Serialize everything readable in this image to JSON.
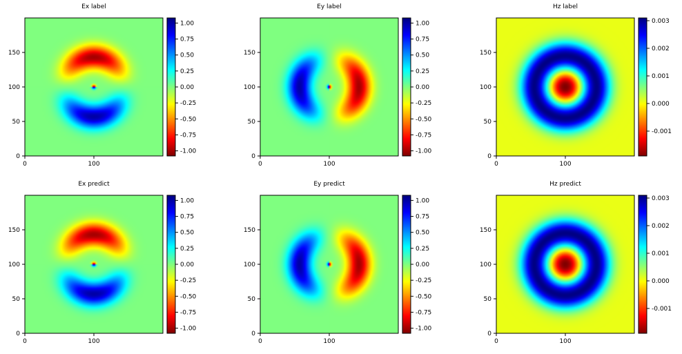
{
  "figure": {
    "type": "heatmap-grid",
    "rows": 2,
    "cols": 3
  },
  "chart_data": [
    {
      "type": "heatmap",
      "title": "Ex label",
      "field": "Ex",
      "colormap": "jet_r",
      "xlim": [
        0,
        200
      ],
      "ylim": [
        0,
        200
      ],
      "x_ticks": [
        0,
        100
      ],
      "y_ticks": [
        0,
        50,
        100,
        150
      ],
      "clim": [
        -1.08,
        1.08
      ],
      "colorbar_ticks": [
        "1.00",
        "0.75",
        "0.50",
        "0.25",
        "0.00",
        "-0.25",
        "-0.50",
        "-0.75",
        "-1.00"
      ],
      "colorbar_values": [
        1.0,
        0.75,
        0.5,
        0.25,
        0.0,
        -0.25,
        -0.5,
        -0.75,
        -1.0
      ]
    },
    {
      "type": "heatmap",
      "title": "Ey label",
      "field": "Ey",
      "colormap": "jet_r",
      "xlim": [
        0,
        200
      ],
      "ylim": [
        0,
        200
      ],
      "x_ticks": [
        0,
        100
      ],
      "y_ticks": [
        0,
        50,
        100,
        150
      ],
      "clim": [
        -1.08,
        1.08
      ],
      "colorbar_ticks": [
        "1.00",
        "0.75",
        "0.50",
        "0.25",
        "0.00",
        "-0.25",
        "-0.50",
        "-0.75",
        "-1.00"
      ],
      "colorbar_values": [
        1.0,
        0.75,
        0.5,
        0.25,
        0.0,
        -0.25,
        -0.5,
        -0.75,
        -1.0
      ]
    },
    {
      "type": "heatmap",
      "title": "Hz label",
      "field": "Hz",
      "colormap": "jet_r",
      "xlim": [
        0,
        200
      ],
      "ylim": [
        0,
        200
      ],
      "x_ticks": [
        0,
        100
      ],
      "y_ticks": [
        0,
        50,
        100,
        150
      ],
      "clim": [
        -0.0019,
        0.0031
      ],
      "colorbar_ticks": [
        "0.003",
        "0.002",
        "0.001",
        "0.000",
        "-0.001"
      ],
      "colorbar_values": [
        0.003,
        0.002,
        0.001,
        0.0,
        -0.001
      ]
    },
    {
      "type": "heatmap",
      "title": "Ex predict",
      "field": "Ex",
      "colormap": "jet_r",
      "xlim": [
        0,
        200
      ],
      "ylim": [
        0,
        200
      ],
      "x_ticks": [
        0,
        100
      ],
      "y_ticks": [
        0,
        50,
        100,
        150
      ],
      "clim": [
        -1.08,
        1.08
      ],
      "colorbar_ticks": [
        "1.00",
        "0.75",
        "0.50",
        "0.25",
        "0.00",
        "-0.25",
        "-0.50",
        "-0.75",
        "-1.00"
      ],
      "colorbar_values": [
        1.0,
        0.75,
        0.5,
        0.25,
        0.0,
        -0.25,
        -0.5,
        -0.75,
        -1.0
      ]
    },
    {
      "type": "heatmap",
      "title": "Ey predict",
      "field": "Ey",
      "colormap": "jet_r",
      "xlim": [
        0,
        200
      ],
      "ylim": [
        0,
        200
      ],
      "x_ticks": [
        0,
        100
      ],
      "y_ticks": [
        0,
        50,
        100,
        150
      ],
      "clim": [
        -1.08,
        1.08
      ],
      "colorbar_ticks": [
        "1.00",
        "0.75",
        "0.50",
        "0.25",
        "0.00",
        "-0.25",
        "-0.50",
        "-0.75",
        "-1.00"
      ],
      "colorbar_values": [
        1.0,
        0.75,
        0.5,
        0.25,
        0.0,
        -0.25,
        -0.5,
        -0.75,
        -1.0
      ]
    },
    {
      "type": "heatmap",
      "title": "Hz predict",
      "field": "Hz",
      "colormap": "jet_r",
      "xlim": [
        0,
        200
      ],
      "ylim": [
        0,
        200
      ],
      "x_ticks": [
        0,
        100
      ],
      "y_ticks": [
        0,
        50,
        100,
        150
      ],
      "clim": [
        -0.0019,
        0.0031
      ],
      "colorbar_ticks": [
        "0.003",
        "0.002",
        "0.001",
        "0.000",
        "-0.001"
      ],
      "colorbar_values": [
        0.003,
        0.002,
        0.001,
        0.0,
        -0.001
      ]
    }
  ]
}
